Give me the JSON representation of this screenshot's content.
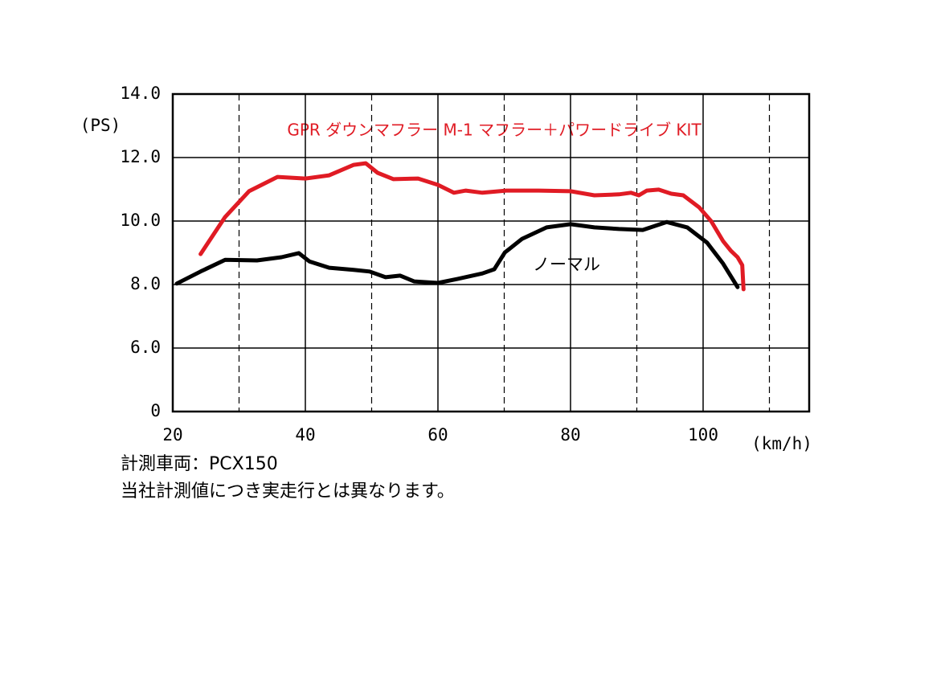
{
  "chart_data": {
    "type": "line",
    "title": "GPR ダウンマフラー M-1 マフラー＋パワードライブ KIT",
    "y_label": "(PS)",
    "x_label": "(km/h)",
    "annotations": [
      "ノーマル"
    ],
    "notes": [
      "計測車両：PCX150",
      "当社計測値につき実走行とは異なります。"
    ],
    "xlim": [
      20,
      116
    ],
    "xticks": [
      20,
      40,
      60,
      80,
      100
    ],
    "x_dashed_grid": [
      30,
      50,
      70,
      90,
      110
    ],
    "ylim": [
      0,
      14
    ],
    "yticks": [
      0,
      {
        "value": 6,
        "label": "6.0"
      },
      {
        "value": 8,
        "label": "8.0"
      },
      {
        "value": 10,
        "label": "10.0"
      },
      {
        "value": 12,
        "label": "12.0"
      },
      {
        "value": 14,
        "label": "14.0"
      }
    ],
    "y_even_tick_spacing": true,
    "grid": true,
    "series": [
      {
        "name": "GPR ダウンマフラー M-1 マフラー＋パワードライブ KIT",
        "color": "#e01b24",
        "x": [
          24.2,
          27.9,
          31.5,
          35.8,
          40,
          43.6,
          47.3,
          49.1,
          50.9,
          53.3,
          57,
          60,
          62.4,
          64.2,
          66.7,
          70.3,
          75.2,
          80,
          83.6,
          87.3,
          89.1,
          90.3,
          91.5,
          93.3,
          95.2,
          97,
          99.4,
          101.2,
          103,
          104.2,
          105.2,
          105.9,
          106.1
        ],
        "values": [
          8.96,
          10.13,
          10.94,
          11.39,
          11.34,
          11.44,
          11.77,
          11.82,
          11.52,
          11.32,
          11.34,
          11.14,
          10.89,
          10.96,
          10.89,
          10.96,
          10.96,
          10.94,
          10.81,
          10.84,
          10.89,
          10.81,
          10.96,
          10.99,
          10.86,
          10.81,
          10.43,
          10.0,
          9.37,
          9.06,
          8.86,
          8.61,
          7.85
        ]
      },
      {
        "name": "ノーマル",
        "color": "#000000",
        "x": [
          20.6,
          24.2,
          27.9,
          32.7,
          36.4,
          39,
          40.6,
          43.6,
          47.3,
          49.7,
          52.1,
          54.3,
          56.4,
          60,
          63,
          66.7,
          68.5,
          70.1,
          72.7,
          76.4,
          80,
          83.6,
          87.3,
          90.9,
          94.5,
          97.6,
          100.6,
          103,
          105.2
        ],
        "values": [
          8.03,
          8.41,
          8.78,
          8.76,
          8.86,
          8.99,
          8.73,
          8.53,
          8.46,
          8.41,
          8.23,
          8.28,
          8.1,
          8.05,
          8.18,
          8.35,
          8.48,
          9.01,
          9.44,
          9.8,
          9.9,
          9.8,
          9.75,
          9.72,
          9.97,
          9.8,
          9.32,
          8.66,
          7.92
        ]
      }
    ]
  }
}
